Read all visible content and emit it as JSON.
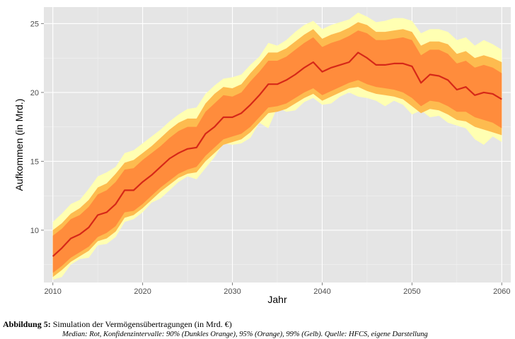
{
  "chart_data": {
    "type": "area",
    "title": "",
    "xlabel": "Jahr",
    "ylabel": "Aufkommen (in Mrd.)",
    "xlim": [
      2009,
      2061
    ],
    "ylim": [
      6.2,
      26.2
    ],
    "x_ticks": [
      2010,
      2020,
      2030,
      2040,
      2050,
      2060
    ],
    "y_ticks": [
      10,
      15,
      20,
      25
    ],
    "grid": true,
    "colors": {
      "panel": "#E5E5E5",
      "grid_major": "#FFFFFF",
      "grid_minor": "#F2F2F2",
      "band99": "#FFFFB2",
      "band95": "#FDBB4F",
      "band90": "#FF8C3C",
      "median": "#D62818"
    },
    "x": [
      2010,
      2011,
      2012,
      2013,
      2014,
      2015,
      2016,
      2017,
      2018,
      2019,
      2020,
      2021,
      2022,
      2023,
      2024,
      2025,
      2026,
      2027,
      2028,
      2029,
      2030,
      2031,
      2032,
      2033,
      2034,
      2035,
      2036,
      2037,
      2038,
      2039,
      2040,
      2041,
      2042,
      2043,
      2044,
      2045,
      2046,
      2047,
      2048,
      2049,
      2050,
      2051,
      2052,
      2053,
      2054,
      2055,
      2056,
      2057,
      2058,
      2059,
      2060
    ],
    "series": [
      {
        "name": "Median",
        "values": [
          8.1,
          8.7,
          9.4,
          9.7,
          10.2,
          11.1,
          11.3,
          11.9,
          12.9,
          12.9,
          13.5,
          14.0,
          14.6,
          15.2,
          15.6,
          15.9,
          16.0,
          17.0,
          17.5,
          18.2,
          18.2,
          18.5,
          19.1,
          19.8,
          20.6,
          20.6,
          20.9,
          21.3,
          21.8,
          22.2,
          21.5,
          21.8,
          22.0,
          22.2,
          22.9,
          22.5,
          22.0,
          22.0,
          22.1,
          22.1,
          21.9,
          20.7,
          21.3,
          21.2,
          20.9,
          20.2,
          20.4,
          19.8,
          20.0,
          19.9,
          19.5
        ]
      },
      {
        "name": "90% Konfidenzintervall (Dunkles Orange)",
        "lower": [
          6.9,
          7.4,
          8.0,
          8.4,
          8.8,
          9.5,
          9.8,
          10.3,
          11.3,
          11.4,
          11.9,
          12.5,
          13.1,
          13.6,
          14.1,
          14.4,
          14.6,
          15.4,
          16.0,
          16.6,
          16.8,
          17.0,
          17.5,
          18.2,
          18.9,
          19.0,
          19.2,
          19.6,
          20.0,
          20.3,
          19.8,
          20.1,
          20.4,
          20.7,
          20.9,
          20.6,
          20.4,
          20.3,
          20.2,
          20.0,
          19.6,
          19.0,
          19.4,
          19.3,
          19.0,
          18.6,
          18.6,
          18.2,
          18.0,
          17.8,
          17.4
        ],
        "upper": [
          9.6,
          10.1,
          10.8,
          11.1,
          11.7,
          12.6,
          12.9,
          13.5,
          14.4,
          14.5,
          15.1,
          15.6,
          16.1,
          16.7,
          17.2,
          17.5,
          17.5,
          18.6,
          19.2,
          19.8,
          19.7,
          20.0,
          20.8,
          21.5,
          22.3,
          22.3,
          22.6,
          23.1,
          23.6,
          24.0,
          23.3,
          23.6,
          23.8,
          24.1,
          24.5,
          24.3,
          23.8,
          23.8,
          23.9,
          24.0,
          23.8,
          22.7,
          23.1,
          23.1,
          22.8,
          22.1,
          22.3,
          21.8,
          22.0,
          21.8,
          21.4
        ]
      },
      {
        "name": "95% Konfidenzintervall (Orange)",
        "lower": [
          6.6,
          7.1,
          7.7,
          8.1,
          8.5,
          9.2,
          9.4,
          9.9,
          10.9,
          11.1,
          11.6,
          12.2,
          12.8,
          13.3,
          13.8,
          14.1,
          14.2,
          15.0,
          15.6,
          16.2,
          16.4,
          16.6,
          17.1,
          17.8,
          18.5,
          18.6,
          18.8,
          19.2,
          19.6,
          19.9,
          19.4,
          19.7,
          20.0,
          20.3,
          20.4,
          20.1,
          19.9,
          19.8,
          19.7,
          19.5,
          19.0,
          18.5,
          18.8,
          18.7,
          18.4,
          18.0,
          17.9,
          17.5,
          17.3,
          17.1,
          16.9
        ],
        "upper": [
          10.0,
          10.5,
          11.2,
          11.6,
          12.2,
          13.1,
          13.4,
          14.1,
          14.9,
          15.1,
          15.6,
          16.1,
          16.7,
          17.3,
          17.8,
          18.1,
          18.1,
          19.2,
          19.9,
          20.4,
          20.3,
          20.6,
          21.4,
          22.1,
          22.9,
          22.9,
          23.2,
          23.7,
          24.2,
          24.6,
          23.9,
          24.2,
          24.4,
          24.7,
          25.1,
          24.9,
          24.4,
          24.4,
          24.5,
          24.6,
          24.4,
          23.4,
          23.7,
          23.7,
          23.5,
          22.8,
          23.0,
          22.5,
          22.7,
          22.5,
          22.2
        ]
      },
      {
        "name": "99% Konfidenzintervall (Gelb)",
        "lower": [
          6.4,
          6.6,
          7.5,
          7.9,
          8.0,
          8.9,
          9.0,
          9.5,
          10.6,
          10.8,
          11.3,
          12.0,
          12.3,
          12.9,
          13.5,
          13.9,
          13.7,
          14.5,
          15.3,
          16.3,
          16.2,
          16.3,
          16.7,
          17.8,
          17.4,
          18.9,
          18.6,
          18.7,
          19.3,
          19.6,
          19.1,
          19.2,
          19.7,
          20.0,
          19.7,
          19.6,
          19.4,
          19.0,
          19.4,
          19.1,
          18.4,
          18.7,
          18.2,
          18.3,
          17.8,
          17.6,
          17.4,
          16.6,
          16.2,
          16.8,
          16.4
        ],
        "upper": [
          10.6,
          11.2,
          11.9,
          12.2,
          13.0,
          13.9,
          14.2,
          14.6,
          15.6,
          15.8,
          16.3,
          16.8,
          17.3,
          17.9,
          18.4,
          18.8,
          18.9,
          19.9,
          20.5,
          21.0,
          21.1,
          21.3,
          22.0,
          22.6,
          23.6,
          23.4,
          23.8,
          24.4,
          24.9,
          25.2,
          24.6,
          24.9,
          25.1,
          25.3,
          25.8,
          25.5,
          25.1,
          25.2,
          25.4,
          25.4,
          25.2,
          24.3,
          24.6,
          24.6,
          24.4,
          23.8,
          24.0,
          23.4,
          23.8,
          23.5,
          23.1
        ]
      }
    ]
  },
  "caption": {
    "label": "Abbildung 5:",
    "title": "Simulation der Vermögensübertragungen (in Mrd. €)",
    "note": "Median: Rot, Konfidenzintervalle: 90% (Dunkles Orange), 95% (Orange), 99% (Gelb). Quelle: HFCS, eigene Darstellung"
  }
}
